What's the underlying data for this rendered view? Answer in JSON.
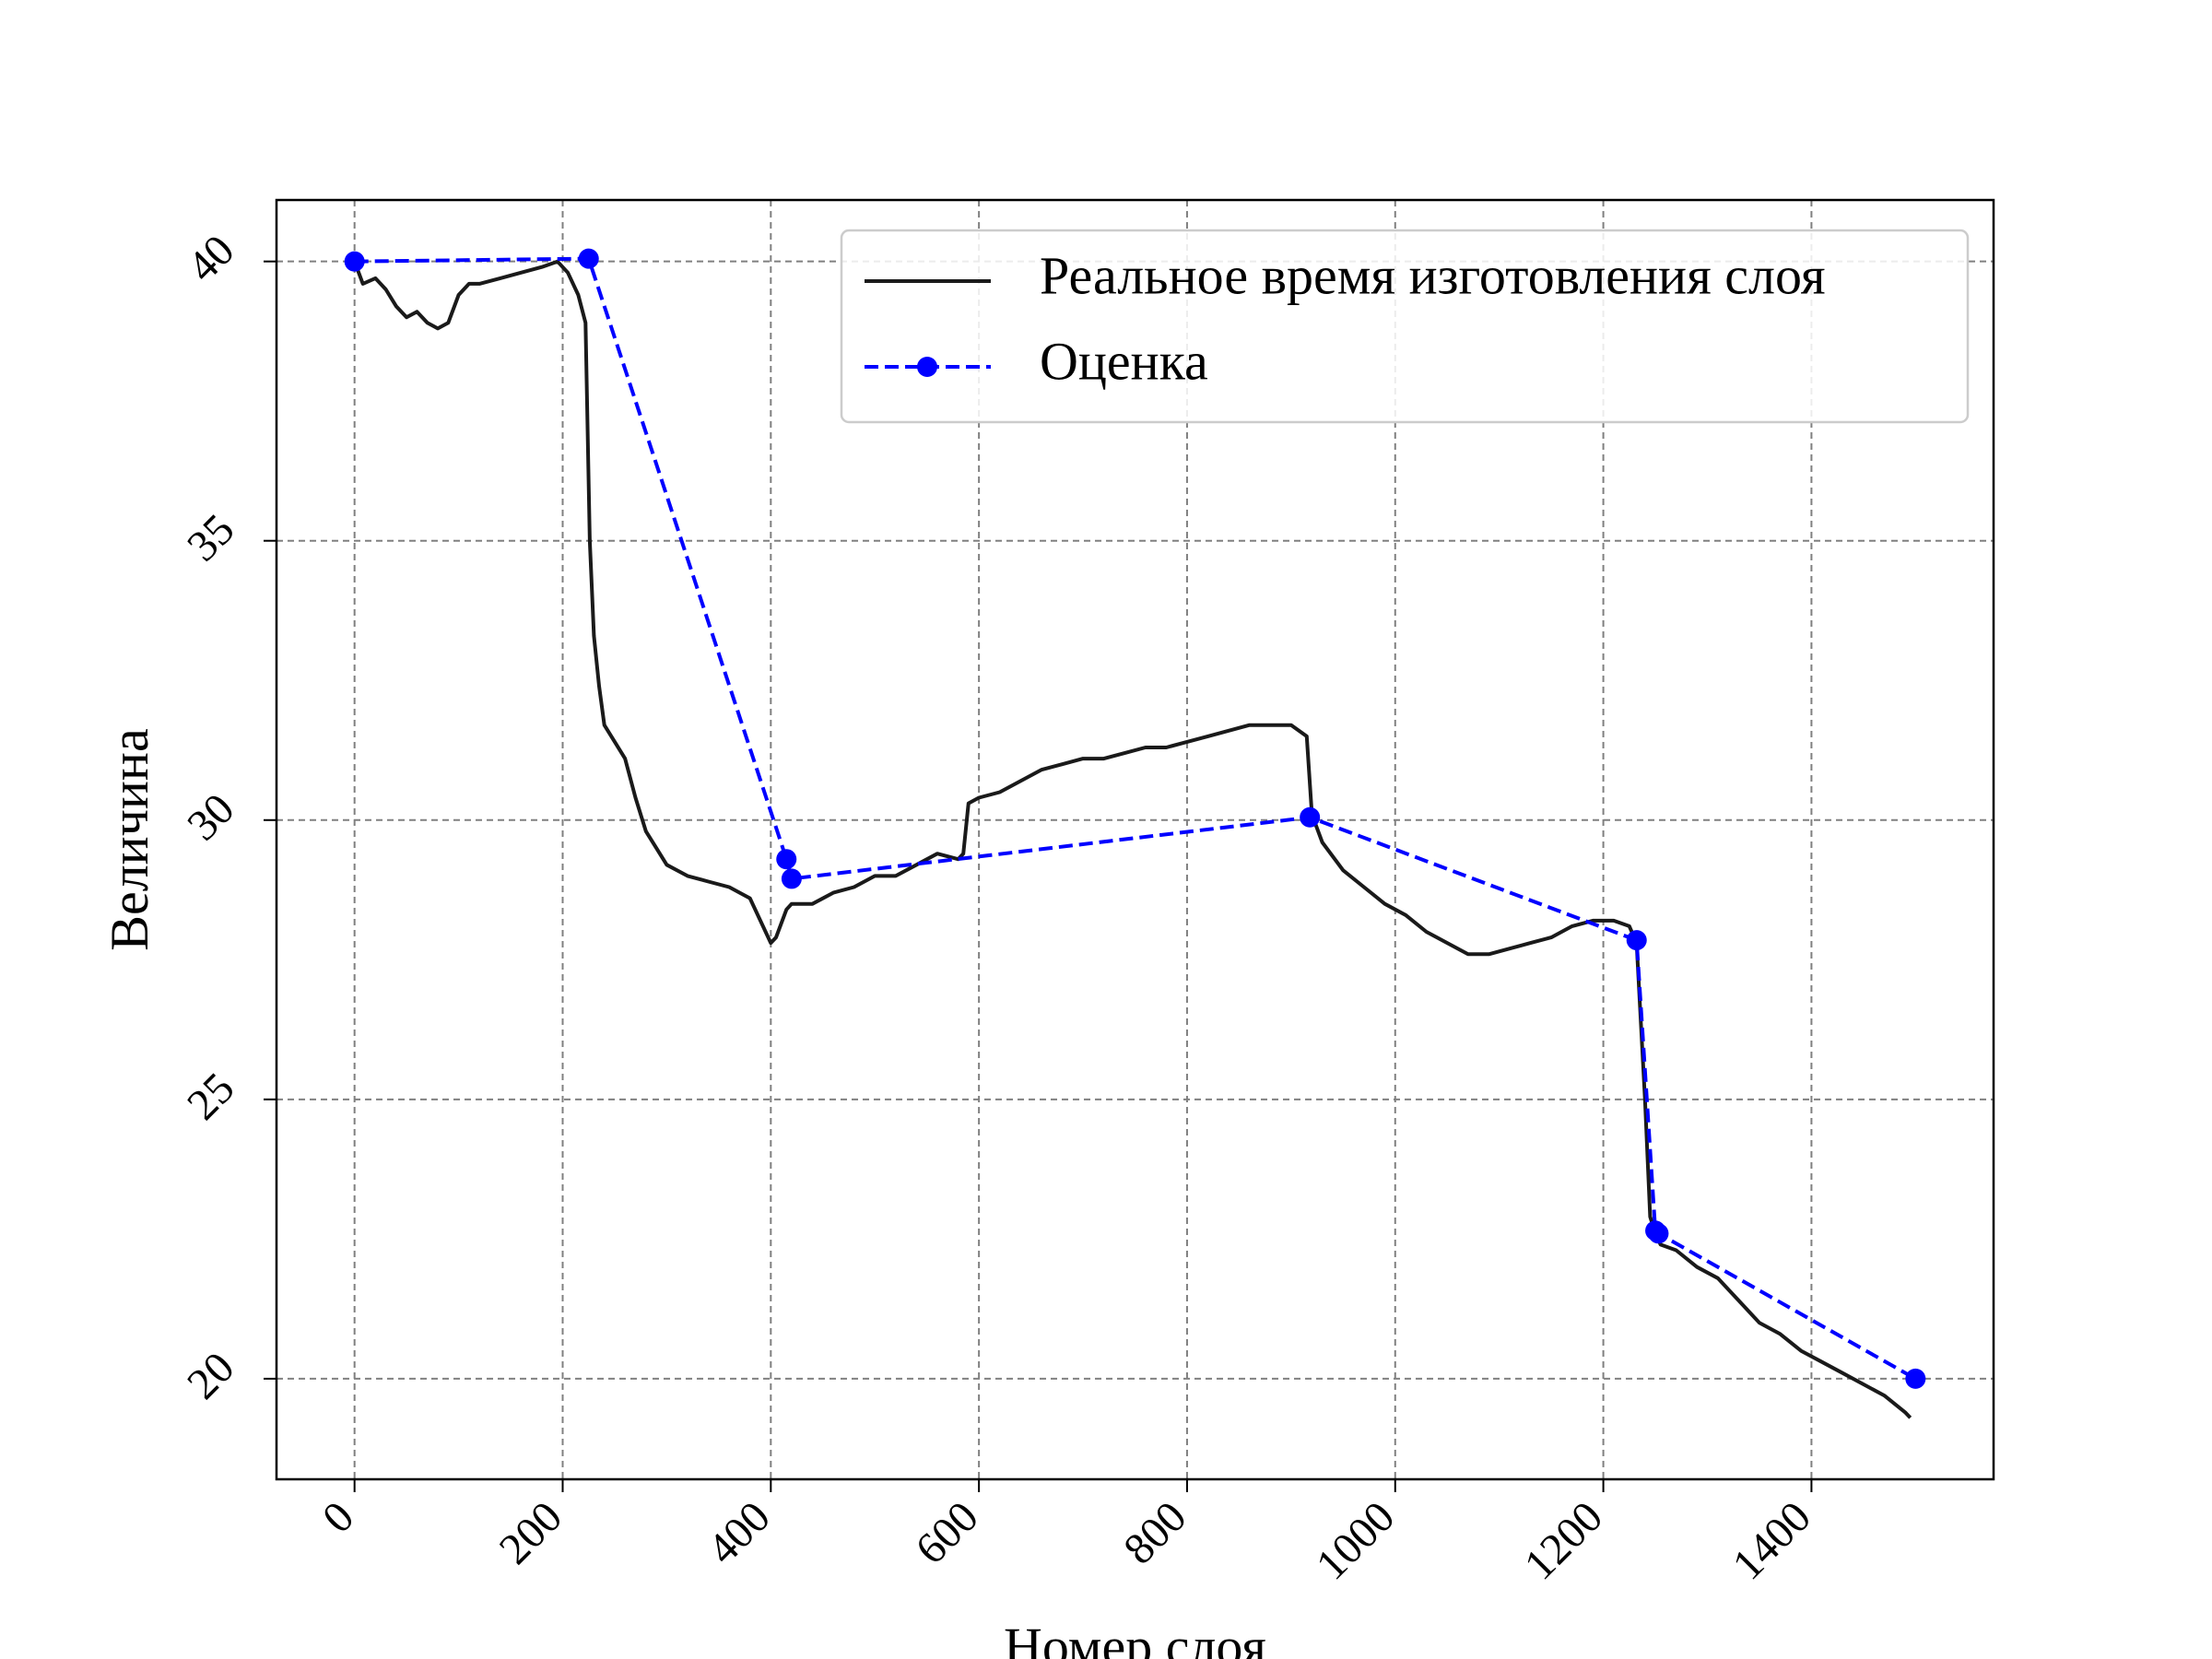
{
  "chart_data": {
    "type": "line",
    "xlabel": "Номер слоя",
    "ylabel": "Величина",
    "xlim": [
      -75,
      1575
    ],
    "ylim": [
      18.2,
      41.1
    ],
    "x_ticks": [
      "0",
      "200",
      "400",
      "600",
      "800",
      "1000",
      "1200",
      "1400"
    ],
    "y_ticks": [
      "20",
      "25",
      "30",
      "35",
      "40"
    ],
    "grid": true,
    "legend_position": "top-right",
    "series": [
      {
        "name": "Реальное время изготовления слоя",
        "style": "solid",
        "color": "#1a1a1a",
        "x": [
          0,
          8,
          20,
          30,
          40,
          50,
          60,
          70,
          80,
          90,
          100,
          110,
          120,
          140,
          160,
          180,
          195,
          205,
          215,
          222,
          226,
          230,
          235,
          240,
          250,
          260,
          270,
          280,
          290,
          300,
          320,
          340,
          360,
          380,
          400,
          405,
          415,
          420,
          440,
          460,
          480,
          500,
          520,
          540,
          560,
          580,
          585,
          590,
          600,
          620,
          640,
          660,
          680,
          700,
          720,
          740,
          760,
          780,
          800,
          820,
          840,
          860,
          880,
          900,
          915,
          920,
          930,
          950,
          970,
          990,
          1010,
          1030,
          1050,
          1070,
          1090,
          1110,
          1130,
          1150,
          1170,
          1190,
          1210,
          1225,
          1232,
          1240,
          1245,
          1250,
          1255,
          1270,
          1290,
          1310,
          1330,
          1350,
          1370,
          1390,
          1410,
          1430,
          1450,
          1470,
          1490,
          1495
        ],
        "y": [
          40.0,
          39.6,
          39.7,
          39.5,
          39.2,
          39.0,
          39.1,
          38.9,
          38.8,
          38.9,
          39.4,
          39.6,
          39.6,
          39.7,
          39.8,
          39.9,
          40.0,
          39.8,
          39.4,
          38.9,
          35.0,
          33.3,
          32.4,
          31.7,
          31.4,
          31.1,
          30.4,
          29.8,
          29.5,
          29.2,
          29.0,
          28.9,
          28.8,
          28.6,
          27.8,
          27.9,
          28.4,
          28.5,
          28.5,
          28.7,
          28.8,
          29.0,
          29.0,
          29.2,
          29.4,
          29.3,
          29.4,
          30.3,
          30.4,
          30.5,
          30.7,
          30.9,
          31.0,
          31.1,
          31.1,
          31.2,
          31.3,
          31.3,
          31.4,
          31.5,
          31.6,
          31.7,
          31.7,
          31.7,
          31.5,
          30.1,
          29.6,
          29.1,
          28.8,
          28.5,
          28.3,
          28.0,
          27.8,
          27.6,
          27.6,
          27.7,
          27.8,
          27.9,
          28.1,
          28.2,
          28.2,
          28.1,
          27.8,
          25.0,
          22.9,
          22.6,
          22.4,
          22.3,
          22.0,
          21.8,
          21.4,
          21.0,
          20.8,
          20.5,
          20.3,
          20.1,
          19.9,
          19.7,
          19.4,
          19.3
        ]
      },
      {
        "name": "Оценка",
        "style": "dashed",
        "marker": "circle",
        "color": "#0000ff",
        "x": [
          0,
          225,
          415,
          420,
          918,
          1232,
          1250,
          1253,
          1500
        ],
        "y": [
          40.0,
          40.05,
          29.3,
          28.95,
          30.05,
          27.85,
          22.65,
          22.6,
          20.0
        ]
      }
    ]
  }
}
